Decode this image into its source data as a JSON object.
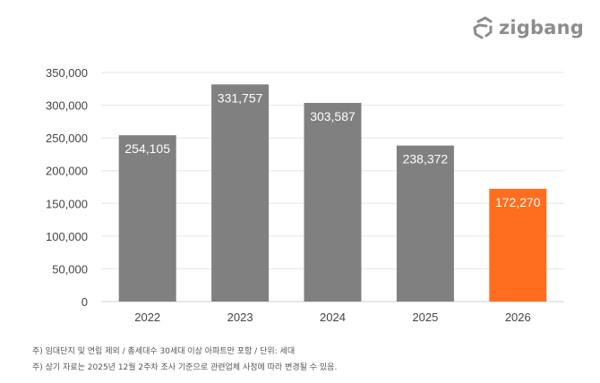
{
  "brand": {
    "name": "zigbang",
    "icon": "zigbang-house-icon",
    "color": "#8d8d8d"
  },
  "notes": [
    "주) 임대단지 및 연립 제외 / 총세대수 30세대 이상 아파트만 포함 / 단위: 세대",
    "주) 상기 자료는 2025년 12월 2주차 조사 기준으로 관련업체 사정에 따라 변경될 수 있음."
  ],
  "chart_data": {
    "type": "bar",
    "title": "",
    "xlabel": "",
    "ylabel": "",
    "categories": [
      "2022",
      "2023",
      "2024",
      "2025",
      "2026"
    ],
    "values": [
      254105,
      331757,
      303587,
      238372,
      172270
    ],
    "value_labels": [
      "254,105",
      "331,757",
      "303,587",
      "238,372",
      "172,270"
    ],
    "ylim": [
      0,
      350000
    ],
    "yticks": [
      0,
      50000,
      100000,
      150000,
      200000,
      250000,
      300000,
      350000
    ],
    "ytick_labels": [
      "0",
      "50,000",
      "100,000",
      "150,000",
      "200,000",
      "250,000",
      "300,000",
      "350,000"
    ],
    "grid": true,
    "bar_colors": [
      "#808080",
      "#808080",
      "#808080",
      "#808080",
      "#ff6e1f"
    ],
    "label_color": "#ffffff"
  }
}
